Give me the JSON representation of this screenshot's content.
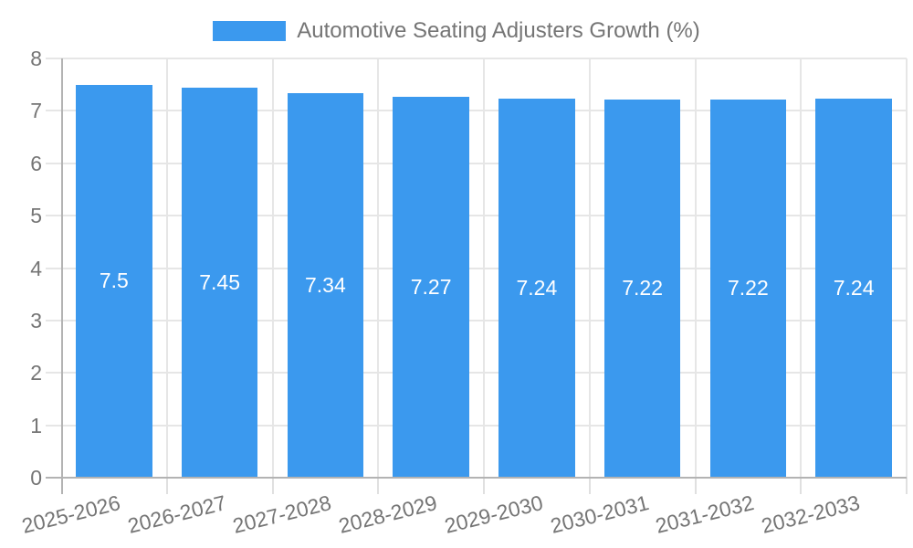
{
  "legend": {
    "label": "Automotive Seating Adjusters Growth (%)"
  },
  "colors": {
    "bar": "#3B99EE",
    "grid": "#e6e6e6",
    "axis": "#b3b3b3",
    "text": "#757575",
    "bar_label_text": "#ffffff",
    "background": "#ffffff"
  },
  "chart_data": {
    "type": "bar",
    "title": "",
    "xlabel": "",
    "ylabel": "",
    "categories": [
      "2025-2026",
      "2026-2027",
      "2027-2028",
      "2028-2029",
      "2029-2030",
      "2030-2031",
      "2031-2032",
      "2032-2033"
    ],
    "series": [
      {
        "name": "Automotive Seating Adjusters Growth (%)",
        "values": [
          7.5,
          7.45,
          7.34,
          7.27,
          7.24,
          7.22,
          7.22,
          7.24
        ]
      }
    ],
    "bar_value_labels": [
      "7.5",
      "7.45",
      "7.34",
      "7.27",
      "7.24",
      "7.22",
      "7.22",
      "7.24"
    ],
    "ylim": [
      0,
      8
    ],
    "yticks": [
      0,
      1,
      2,
      3,
      4,
      5,
      6,
      7,
      8
    ],
    "grid": true,
    "legend_position": "top"
  }
}
